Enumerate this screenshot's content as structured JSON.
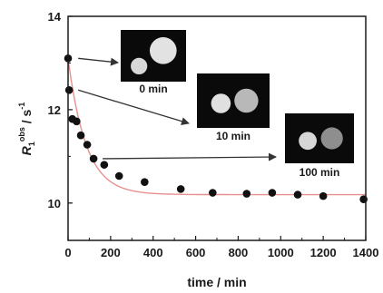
{
  "chart_data": {
    "type": "scatter",
    "xlabel": "time / min",
    "ylabel": "R",
    "ylabel_superscript": "obs",
    "ylabel_subscript": "1",
    "ylabel_unit": " / s",
    "ylabel_unit_superscript": "-1",
    "xlim": [
      0,
      1400
    ],
    "ylim": [
      9.2,
      14
    ],
    "xticks": [
      0,
      200,
      400,
      600,
      800,
      1000,
      1200,
      1400
    ],
    "yticks": [
      10,
      12,
      14
    ],
    "series": [
      {
        "x": [
          0,
          5,
          20,
          40,
          60,
          90,
          120,
          170,
          240,
          360,
          530,
          680,
          840,
          960,
          1080,
          1200,
          1390
        ],
        "y": [
          13.1,
          12.42,
          11.8,
          11.75,
          11.45,
          11.25,
          10.95,
          10.82,
          10.58,
          10.45,
          10.3,
          10.22,
          10.2,
          10.22,
          10.18,
          10.15,
          10.08
        ],
        "marker_color": "#111111"
      }
    ],
    "fit_curve": {
      "model": "exponential-decay",
      "y_inf": 10.18,
      "amplitude": 2.92,
      "tau": 85,
      "color": "#e89090"
    },
    "insets": [
      {
        "label": "0 min",
        "left_brightness": "#d8d8d8",
        "right_brightness": "#e2e2e2",
        "arrow_from": [
          5,
          13.1
        ]
      },
      {
        "label": "10 min",
        "left_brightness": "#e0e0e0",
        "right_brightness": "#b8b8b8",
        "arrow_from": [
          5,
          12.42
        ]
      },
      {
        "label": "100 min",
        "left_brightness": "#d6d6d6",
        "right_brightness": "#8e8e8e",
        "arrow_from": [
          120,
          10.95
        ]
      }
    ]
  }
}
